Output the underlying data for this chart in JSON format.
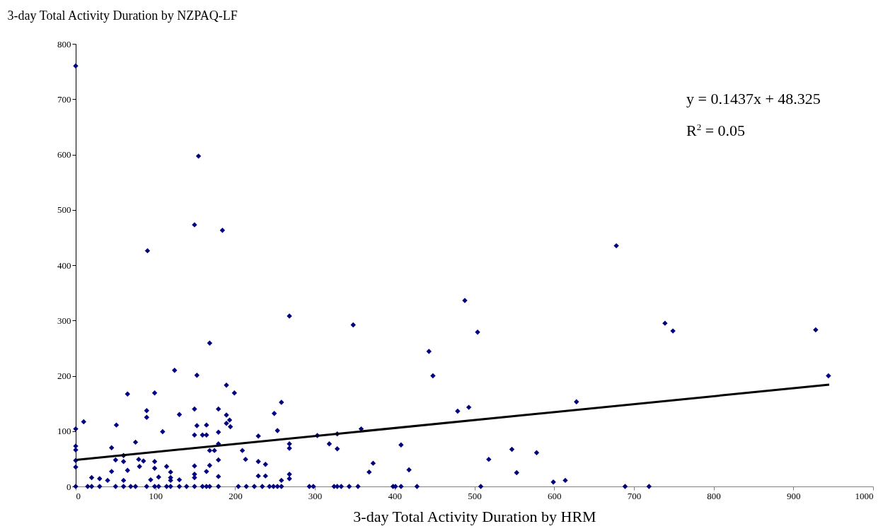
{
  "chart_data": {
    "type": "scatter",
    "xlabel": "3-day Total Activity Duration by HRM",
    "ylabel": "3-day Total Activity Duration by NZPAQ-LF",
    "annotations": [
      "y = 0.1437x + 48.325",
      "R$^{2}$ = 0.05"
    ],
    "xlim": [
      0,
      1000
    ],
    "ylim": [
      0,
      800
    ],
    "xticks": [
      0,
      100,
      200,
      300,
      400,
      500,
      600,
      700,
      800,
      900,
      1000
    ],
    "yticks": [
      0,
      100,
      200,
      300,
      400,
      500,
      600,
      700,
      800
    ],
    "series": [
      {
        "color": "#000080",
        "marker": "diamond",
        "x": [
          0,
          0,
          0,
          0,
          0,
          0,
          0,
          10,
          15,
          20,
          20,
          30,
          30,
          40,
          45,
          45,
          50,
          50,
          51,
          60,
          60,
          60,
          60,
          65,
          65,
          69,
          75,
          75,
          79,
          85,
          80,
          89,
          89,
          89,
          90,
          94,
          99,
          99,
          99,
          99,
          104,
          104,
          109,
          114,
          114,
          119,
          119,
          119,
          119,
          124,
          130,
          130,
          130,
          139,
          149,
          149,
          149,
          149,
          149,
          149,
          149,
          152,
          152,
          154,
          159,
          159,
          164,
          164,
          164,
          164,
          168,
          168,
          168,
          174,
          168,
          179,
          179,
          179,
          179,
          179,
          179,
          184,
          189,
          189,
          189,
          193,
          194,
          199,
          204,
          209,
          213,
          214,
          224,
          229,
          229,
          229,
          234,
          238,
          238,
          243,
          248,
          249,
          253,
          253,
          258,
          258,
          258,
          268,
          268,
          268,
          268,
          268,
          293,
          298,
          303,
          318,
          324,
          328,
          328,
          328,
          333,
          343,
          348,
          354,
          358,
          368,
          373,
          398,
          401,
          408,
          408,
          418,
          428,
          443,
          448,
          479,
          493,
          488,
          504,
          508,
          518,
          547,
          553,
          578,
          599,
          614,
          628,
          678,
          689,
          719,
          739,
          749,
          928,
          944
        ],
        "values": [
          0,
          104,
          73,
          66,
          47,
          35,
          760,
          117,
          0,
          0,
          16,
          0,
          14,
          11,
          70,
          27,
          0,
          48,
          111,
          0,
          56,
          45,
          11,
          167,
          29,
          0,
          0,
          80,
          49,
          46,
          36,
          0,
          137,
          125,
          426,
          12,
          0,
          169,
          45,
          33,
          0,
          17,
          99,
          0,
          36,
          0,
          26,
          16,
          11,
          210,
          0,
          130,
          12,
          0,
          0,
          140,
          93,
          37,
          22,
          16,
          473,
          201,
          110,
          597,
          0,
          93,
          0,
          93,
          111,
          27,
          0,
          259,
          65,
          65,
          38,
          0,
          140,
          98,
          77,
          48,
          18,
          463,
          183,
          129,
          114,
          120,
          108,
          169,
          0,
          65,
          49,
          0,
          0,
          91,
          45,
          19,
          0,
          40,
          19,
          0,
          0,
          132,
          0,
          101,
          152,
          11,
          0,
          308,
          77,
          69,
          22,
          14,
          0,
          0,
          92,
          77,
          0,
          0,
          95,
          68,
          0,
          0,
          292,
          0,
          104,
          26,
          42,
          0,
          0,
          0,
          75,
          30,
          0,
          244,
          200,
          136,
          143,
          336,
          279,
          0,
          49,
          67,
          25,
          61,
          8,
          11,
          153,
          435,
          0,
          0,
          295,
          281,
          283,
          200
        ]
      },
      {
        "type": "line",
        "color": "#000000",
        "x": [
          0,
          945
        ],
        "values": [
          48,
          184
        ]
      }
    ]
  }
}
